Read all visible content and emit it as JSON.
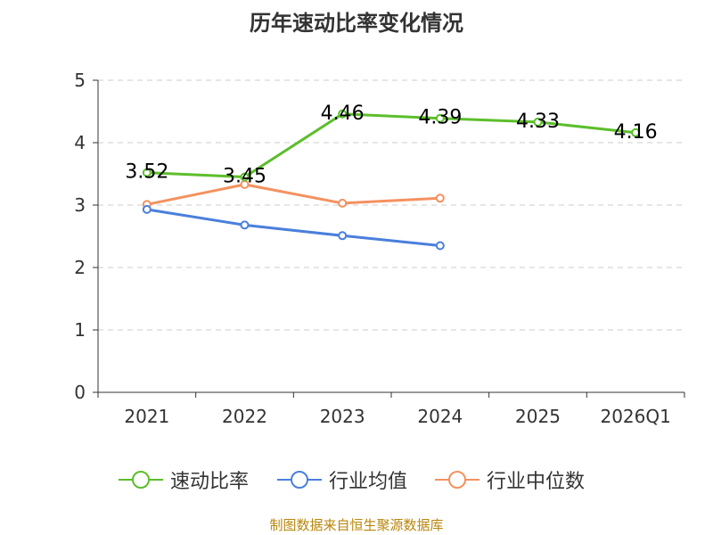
{
  "chart_data": {
    "type": "line",
    "title": "历年速动比率变化情况",
    "categories": [
      "2021",
      "2022",
      "2023",
      "2024",
      "2025",
      "2026Q1"
    ],
    "ylim": [
      0,
      5
    ],
    "yticks": [
      "0",
      "1",
      "2",
      "3",
      "4",
      "5"
    ],
    "grid": true,
    "legend_position": "bottom",
    "series": [
      {
        "name": "速动比率",
        "color": "#5cbe2b",
        "values": [
          3.52,
          3.45,
          4.46,
          4.39,
          4.33,
          4.16
        ],
        "labels": [
          "3.52",
          "3.45",
          "4.46",
          "4.39",
          "4.33",
          "4.16"
        ]
      },
      {
        "name": "行业均值",
        "color": "#4a7fdc",
        "values": [
          2.93,
          2.68,
          2.51,
          2.35,
          null,
          null
        ]
      },
      {
        "name": "行业中位数",
        "color": "#f4915f",
        "values": [
          3.01,
          3.33,
          3.03,
          3.11,
          null,
          null
        ]
      }
    ]
  },
  "footer": "制图数据来自恒生聚源数据库"
}
